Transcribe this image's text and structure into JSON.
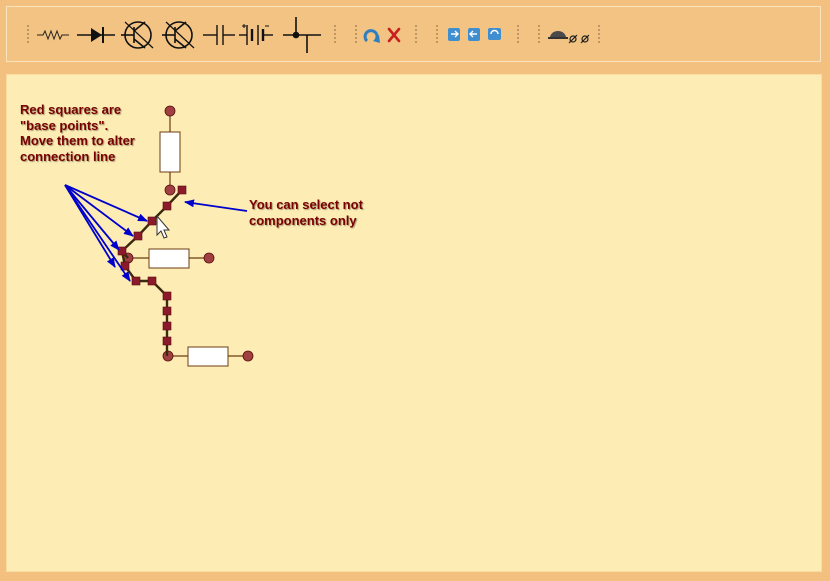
{
  "toolbar": {
    "tools": [
      {
        "name": "resistor-tool-icon"
      },
      {
        "name": "diode-tool-icon"
      },
      {
        "name": "npn-transistor-tool-icon"
      },
      {
        "name": "pnp-transistor-tool-icon"
      },
      {
        "name": "capacitor-tool-icon"
      },
      {
        "name": "battery-tool-icon"
      },
      {
        "name": "junction-tool-icon"
      },
      {
        "name": "rotate-icon"
      },
      {
        "name": "delete-icon"
      },
      {
        "name": "undo-icon"
      },
      {
        "name": "redo-icon"
      },
      {
        "name": "refresh-icon"
      },
      {
        "name": "zoom-icon"
      },
      {
        "name": "settings-icon"
      }
    ]
  },
  "notes": {
    "base_points": "Red squares are \"base points\". Move them to alter connection line",
    "select_any": "You can select not components only"
  },
  "colors": {
    "toolbar_bg": "#f2c383",
    "canvas_bg": "#fdedb4",
    "annotation_text": "#7a0000",
    "arrow": "#0000cc",
    "base_point": "#8b1a2a",
    "terminal": "#a04040"
  }
}
